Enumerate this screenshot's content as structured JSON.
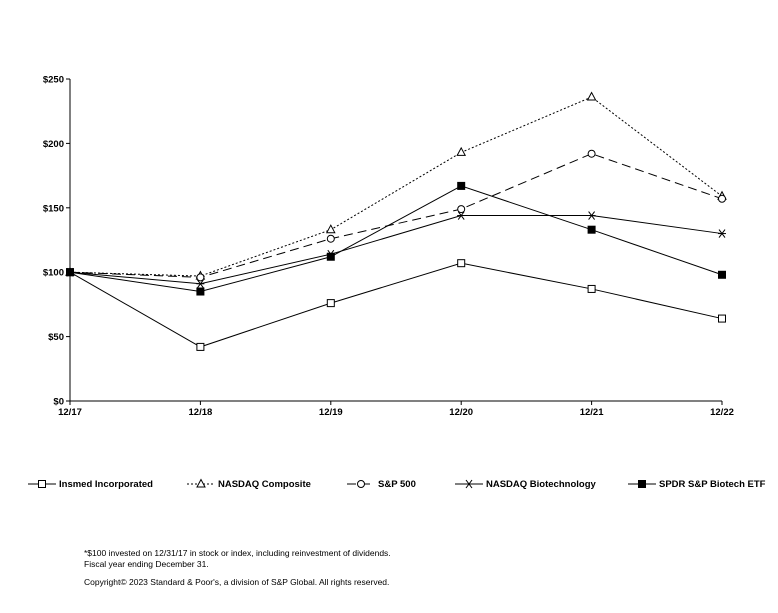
{
  "chart_data": {
    "type": "line",
    "categories": [
      "12/17",
      "12/18",
      "12/19",
      "12/20",
      "12/21",
      "12/22"
    ],
    "y_ticks": [
      "$0",
      "$50",
      "$100",
      "$150",
      "$200",
      "$250"
    ],
    "ylim": [
      0,
      250
    ],
    "grid": false,
    "legend_position": "bottom",
    "series": [
      {
        "name": "Insmed Incorporated",
        "values": [
          100,
          42,
          76,
          107,
          87,
          64
        ],
        "marker": "open-square",
        "dash": "solid"
      },
      {
        "name": "NASDAQ Composite",
        "values": [
          100,
          97,
          133,
          193,
          236,
          159
        ],
        "marker": "open-triangle",
        "dash": "dotted"
      },
      {
        "name": "S&P 500",
        "values": [
          100,
          96,
          126,
          149,
          192,
          157
        ],
        "marker": "open-circle",
        "dash": "dashed"
      },
      {
        "name": "NASDAQ Biotechnology",
        "values": [
          100,
          91,
          114,
          144,
          144,
          130
        ],
        "marker": "asterisk",
        "dash": "solid"
      },
      {
        "name": "SPDR S&P Biotech ETF",
        "values": [
          100,
          85,
          112,
          167,
          133,
          98
        ],
        "marker": "filled-square",
        "dash": "solid"
      }
    ]
  },
  "notes": {
    "line1": "*$100 invested on 12/31/17 in stock or index, including reinvestment of dividends.",
    "line2": "Fiscal year ending December 31.",
    "copyright": "Copyright© 2023 Standard & Poor's, a division of S&P Global. All rights reserved."
  }
}
